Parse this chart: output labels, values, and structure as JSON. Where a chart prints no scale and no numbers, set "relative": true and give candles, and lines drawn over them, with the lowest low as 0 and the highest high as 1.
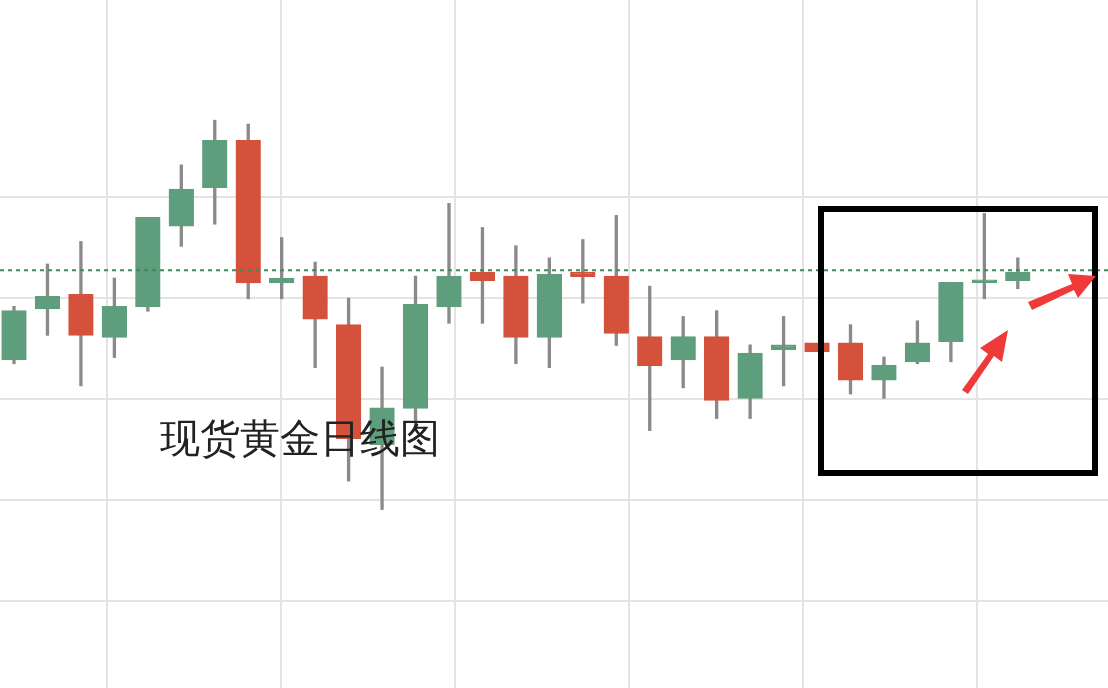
{
  "chart_data": {
    "type": "candlestick",
    "relative": true,
    "grid": true,
    "tick_labels": false,
    "categories": [
      null,
      null,
      null,
      null,
      null,
      null,
      null,
      null,
      null,
      null,
      null,
      null,
      null,
      null,
      null,
      null,
      null,
      null,
      null,
      null,
      null,
      null,
      null,
      null,
      null,
      null,
      null,
      null,
      null,
      null,
      null
    ],
    "ohlc": [
      [
        0.385,
        0.521,
        0.375,
        0.51
      ],
      [
        0.516,
        0.63,
        0.448,
        0.547
      ],
      [
        0.552,
        0.688,
        0.318,
        0.448
      ],
      [
        0.443,
        0.594,
        0.391,
        0.521
      ],
      [
        0.521,
        0.75,
        0.51,
        0.75
      ],
      [
        0.729,
        0.885,
        0.677,
        0.823
      ],
      [
        0.828,
        1,
        0.734,
        0.948
      ],
      [
        0.948,
        0.99,
        0.542,
        0.583
      ],
      [
        0.583,
        0.698,
        0.542,
        0.594
      ],
      [
        0.599,
        0.635,
        0.365,
        0.49
      ],
      [
        0.474,
        0.542,
        0.073,
        0.182
      ],
      [
        0.167,
        0.365,
        0,
        0.26
      ],
      [
        0.26,
        0.599,
        0.203,
        0.526
      ],
      [
        0.521,
        0.786,
        0.479,
        0.599
      ],
      [
        0.609,
        0.724,
        0.479,
        0.589
      ],
      [
        0.599,
        0.677,
        0.375,
        0.443
      ],
      [
        0.443,
        0.646,
        0.365,
        0.604
      ],
      [
        0.609,
        0.693,
        0.531,
        0.599
      ],
      [
        0.599,
        0.755,
        0.422,
        0.453
      ],
      [
        0.443,
        0.573,
        0.203,
        0.37
      ],
      [
        0.385,
        0.495,
        0.313,
        0.443
      ],
      [
        0.443,
        0.51,
        0.234,
        0.281
      ],
      [
        0.286,
        0.422,
        0.234,
        0.401
      ],
      [
        0.411,
        0.495,
        0.318,
        0.422
      ],
      [
        0.427,
        0.427,
        0.406,
        0.406
      ],
      [
        0.427,
        0.474,
        0.297,
        0.333
      ],
      [
        0.333,
        0.391,
        0.286,
        0.37
      ],
      [
        0.38,
        0.484,
        0.375,
        0.427
      ],
      [
        0.432,
        0.583,
        0.38,
        0.583
      ],
      [
        0.583,
        0.76,
        0.542,
        0.589
      ],
      [
        0.589,
        0.646,
        0.568,
        0.609
      ]
    ],
    "colors": [
      "#5f9e7c",
      "#5f9e7c",
      "#d4523b",
      "#5f9e7c",
      "#5f9e7c",
      "#5f9e7c",
      "#5f9e7c",
      "#d4523b",
      "#5f9e7c",
      "#d4523b",
      "#d4523b",
      "#5f9e7c",
      "#5f9e7c",
      "#5f9e7c",
      "#d4523b",
      "#d4523b",
      "#5f9e7c",
      "#d4523b",
      "#d4523b",
      "#d4523b",
      "#5f9e7c",
      "#d4523b",
      "#5f9e7c",
      "#5f9e7c",
      "#d4523b",
      "#d4523b",
      "#5f9e7c",
      "#5f9e7c",
      "#5f9e7c",
      "#5f9e7c",
      "#5f9e7c"
    ],
    "ref_lines": [
      {
        "axis": "y",
        "value": 0.615,
        "color": "#3c8c5a",
        "line_style": "dotted"
      }
    ],
    "annotations": [
      "现货黄金日线图"
    ]
  }
}
